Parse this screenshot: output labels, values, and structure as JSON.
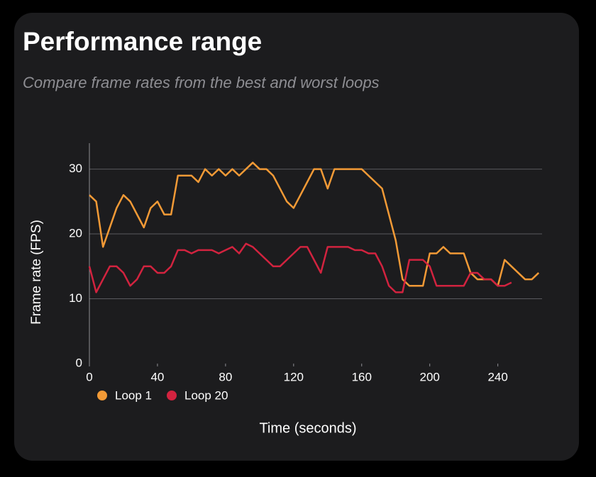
{
  "chart_data": {
    "type": "line",
    "title": "Performance range",
    "subtitle": "Compare frame rates from the best and worst loops",
    "x_label": "Time (seconds)",
    "y_label": "Frame rate (FPS)",
    "x": [
      0,
      4,
      8,
      12,
      16,
      20,
      24,
      28,
      32,
      36,
      40,
      44,
      48,
      52,
      56,
      60,
      64,
      68,
      72,
      76,
      80,
      84,
      88,
      92,
      96,
      100,
      104,
      108,
      112,
      116,
      120,
      124,
      128,
      132,
      136,
      140,
      144,
      148,
      152,
      156,
      160,
      164,
      168,
      172,
      176,
      180,
      184,
      188,
      192,
      196,
      200,
      204,
      208,
      212,
      216,
      220,
      224,
      228,
      232,
      236,
      240,
      244,
      248,
      252,
      256,
      260,
      264
    ],
    "series": [
      {
        "name": "Loop 1",
        "color": "#f29a36",
        "values": [
          26,
          25,
          18,
          21,
          24,
          26,
          25,
          23,
          21,
          24,
          25,
          23,
          23,
          29,
          29,
          29,
          28,
          30,
          29,
          30,
          29,
          30,
          29,
          30,
          31,
          30,
          30,
          29,
          27,
          25,
          24,
          26,
          28,
          30,
          30,
          27,
          30,
          30,
          30,
          30,
          30,
          29,
          28,
          27,
          23,
          19,
          13,
          12,
          12,
          12,
          17,
          17,
          18,
          17,
          17,
          17,
          14,
          13,
          13,
          13,
          12,
          16,
          15,
          14,
          13,
          13,
          14
        ]
      },
      {
        "name": "Loop 20",
        "color": "#d2233f",
        "values": [
          15,
          11,
          13,
          15,
          15,
          14,
          12,
          13,
          15,
          15,
          14,
          14,
          15,
          17.5,
          17.5,
          17,
          17.5,
          17.5,
          17.5,
          17,
          17.5,
          18,
          17,
          18.5,
          18,
          17,
          16,
          15,
          15,
          16,
          17,
          18,
          18,
          16,
          14,
          18,
          18,
          18,
          18,
          17.5,
          17.5,
          17,
          17,
          15,
          12,
          11,
          11,
          16,
          16,
          16,
          15,
          12,
          12,
          12,
          12,
          12,
          14,
          14,
          13,
          13,
          12,
          12,
          12.5,
          null,
          null,
          null,
          null
        ]
      }
    ],
    "xlim": [
      0,
      266
    ],
    "xticks": [
      0,
      40,
      80,
      120,
      160,
      200,
      240
    ],
    "ylim": [
      0,
      34
    ],
    "yticks": [
      0,
      10,
      20,
      30
    ],
    "grid": true,
    "legend": "bottom-left"
  }
}
